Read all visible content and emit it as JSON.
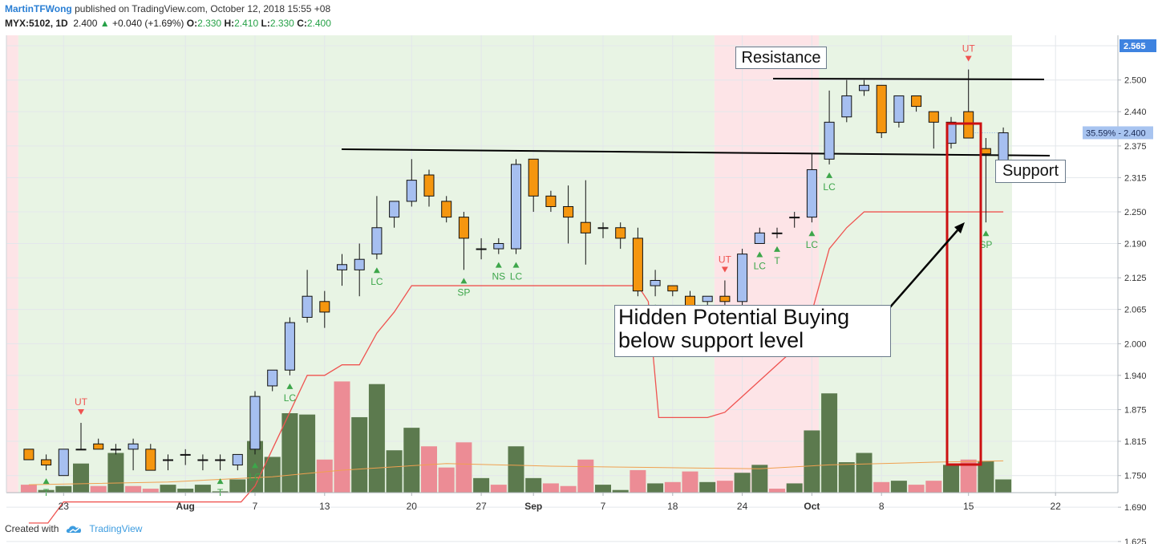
{
  "header": {
    "author": "MartinTFWong",
    "published": "published on TradingView.com, October 12, 2018 15:55 +08",
    "symbol": "MYX:5102, 1D",
    "last": "2.400",
    "change_arrow": "▲",
    "change": "+0.040 (+1.69%)",
    "o_label": "O:",
    "o": "2.330",
    "h_label": "H:",
    "h": "2.410",
    "l_label": "L:",
    "l": "2.330",
    "c_label": "C:",
    "c": "2.400"
  },
  "footer": {
    "created_with": "Created with",
    "brand": "TradingView"
  },
  "annotations": {
    "resistance": "Resistance",
    "support": "Support",
    "hidden_line1": "Hidden Potential Buying",
    "hidden_line2": "below support level"
  },
  "colors": {
    "bull_candle": "#a6bff0",
    "bear_candle": "#f5960f",
    "candle_edge": "#111111",
    "vol_green": "#5c7a4e",
    "vol_red": "#ec8c95",
    "bg_green": "#e8f4e4",
    "bg_pink": "#fde4e7",
    "trail": "#ef5350",
    "arrow_green": "#3da64a",
    "arrow_red": "#ef5350",
    "signal_green": "#3da64a",
    "signal_red": "#ef5350",
    "price_badge": "#3e83e0",
    "box": "#cc1111"
  },
  "chart_data": {
    "type": "candlestick",
    "symbol": "MYX:5102",
    "interval": "1D",
    "ylim": [
      1.6,
      2.58
    ],
    "y_ticks": [
      "2.565",
      "2.500",
      "2.440",
      "2.375",
      "2.315",
      "2.250",
      "2.190",
      "2.125",
      "2.065",
      "2.000",
      "1.940",
      "1.875",
      "1.815",
      "1.750",
      "1.690",
      "1.625"
    ],
    "x_ticks": [
      {
        "label": "23",
        "x": -6
      },
      {
        "label": "Aug",
        "x": 1
      },
      {
        "label": "7",
        "x": 5
      },
      {
        "label": "13",
        "x": 9
      },
      {
        "label": "20",
        "x": 14
      },
      {
        "label": "27",
        "x": 18
      },
      {
        "label": "Sep",
        "x": 21
      },
      {
        "label": "7",
        "x": 25
      },
      {
        "label": "18",
        "x": 29
      },
      {
        "label": "24",
        "x": 33
      },
      {
        "label": "Oct",
        "x": 37
      },
      {
        "label": "8",
        "x": 41
      },
      {
        "label": "15",
        "x": 46
      },
      {
        "label": "22",
        "x": 51
      }
    ],
    "candles": [
      {
        "x": -8,
        "o": 1.8,
        "h": 1.8,
        "l": 1.78,
        "c": 1.78
      },
      {
        "x": -7,
        "o": 1.78,
        "h": 1.79,
        "l": 1.76,
        "c": 1.77
      },
      {
        "x": -6,
        "o": 1.75,
        "h": 1.8,
        "l": 1.75,
        "c": 1.8
      },
      {
        "x": -5,
        "o": 1.8,
        "h": 1.85,
        "l": 1.8,
        "c": 1.8
      },
      {
        "x": -4,
        "o": 1.81,
        "h": 1.82,
        "l": 1.8,
        "c": 1.8
      },
      {
        "x": -3,
        "o": 1.8,
        "h": 1.81,
        "l": 1.79,
        "c": 1.8
      },
      {
        "x": -2,
        "o": 1.8,
        "h": 1.82,
        "l": 1.76,
        "c": 1.81
      },
      {
        "x": -1,
        "o": 1.8,
        "h": 1.81,
        "l": 1.76,
        "c": 1.76
      },
      {
        "x": 0,
        "o": 1.78,
        "h": 1.79,
        "l": 1.76,
        "c": 1.78
      },
      {
        "x": 1,
        "o": 1.79,
        "h": 1.8,
        "l": 1.77,
        "c": 1.79
      },
      {
        "x": 2,
        "o": 1.78,
        "h": 1.79,
        "l": 1.76,
        "c": 1.78
      },
      {
        "x": 3,
        "o": 1.78,
        "h": 1.79,
        "l": 1.76,
        "c": 1.78
      },
      {
        "x": 4,
        "o": 1.77,
        "h": 1.79,
        "l": 1.76,
        "c": 1.79
      },
      {
        "x": 5,
        "o": 1.8,
        "h": 1.91,
        "l": 1.79,
        "c": 1.9
      },
      {
        "x": 6,
        "o": 1.92,
        "h": 1.95,
        "l": 1.91,
        "c": 1.95
      },
      {
        "x": 7,
        "o": 1.95,
        "h": 2.05,
        "l": 1.94,
        "c": 2.04
      },
      {
        "x": 8,
        "o": 2.05,
        "h": 2.14,
        "l": 2.04,
        "c": 2.09
      },
      {
        "x": 9,
        "o": 2.08,
        "h": 2.1,
        "l": 2.03,
        "c": 2.06
      },
      {
        "x": 10,
        "o": 2.14,
        "h": 2.17,
        "l": 2.11,
        "c": 2.15
      },
      {
        "x": 11,
        "o": 2.14,
        "h": 2.19,
        "l": 2.09,
        "c": 2.16
      },
      {
        "x": 12,
        "o": 2.17,
        "h": 2.28,
        "l": 2.16,
        "c": 2.22
      },
      {
        "x": 13,
        "o": 2.24,
        "h": 2.27,
        "l": 2.22,
        "c": 2.27
      },
      {
        "x": 14,
        "o": 2.27,
        "h": 2.35,
        "l": 2.26,
        "c": 2.31
      },
      {
        "x": 15,
        "o": 2.32,
        "h": 2.33,
        "l": 2.26,
        "c": 2.28
      },
      {
        "x": 16,
        "o": 2.27,
        "h": 2.28,
        "l": 2.23,
        "c": 2.24
      },
      {
        "x": 17,
        "o": 2.24,
        "h": 2.25,
        "l": 2.14,
        "c": 2.2
      },
      {
        "x": 18,
        "o": 2.18,
        "h": 2.2,
        "l": 2.16,
        "c": 2.18
      },
      {
        "x": 19,
        "o": 2.18,
        "h": 2.2,
        "l": 2.17,
        "c": 2.19
      },
      {
        "x": 20,
        "o": 2.18,
        "h": 2.35,
        "l": 2.17,
        "c": 2.34
      },
      {
        "x": 21,
        "o": 2.35,
        "h": 2.35,
        "l": 2.25,
        "c": 2.28
      },
      {
        "x": 22,
        "o": 2.28,
        "h": 2.29,
        "l": 2.25,
        "c": 2.26
      },
      {
        "x": 23,
        "o": 2.26,
        "h": 2.3,
        "l": 2.19,
        "c": 2.24
      },
      {
        "x": 24,
        "o": 2.23,
        "h": 2.31,
        "l": 2.15,
        "c": 2.21
      },
      {
        "x": 25,
        "o": 2.22,
        "h": 2.23,
        "l": 2.2,
        "c": 2.22
      },
      {
        "x": 26,
        "o": 2.22,
        "h": 2.23,
        "l": 2.18,
        "c": 2.2
      },
      {
        "x": 27,
        "o": 2.2,
        "h": 2.22,
        "l": 2.09,
        "c": 2.1
      },
      {
        "x": 28,
        "o": 2.11,
        "h": 2.14,
        "l": 2.09,
        "c": 2.12
      },
      {
        "x": 29,
        "o": 2.11,
        "h": 2.11,
        "l": 2.09,
        "c": 2.1
      },
      {
        "x": 30,
        "o": 2.09,
        "h": 2.1,
        "l": 2.03,
        "c": 2.05
      },
      {
        "x": 31,
        "o": 2.08,
        "h": 2.09,
        "l": 2.06,
        "c": 2.09
      },
      {
        "x": 32,
        "o": 2.09,
        "h": 2.12,
        "l": 2.07,
        "c": 2.08
      },
      {
        "x": 33,
        "o": 2.08,
        "h": 2.18,
        "l": 2.07,
        "c": 2.17
      },
      {
        "x": 34,
        "o": 2.19,
        "h": 2.22,
        "l": 2.19,
        "c": 2.21
      },
      {
        "x": 35,
        "o": 2.21,
        "h": 2.22,
        "l": 2.2,
        "c": 2.21
      },
      {
        "x": 36,
        "o": 2.24,
        "h": 2.25,
        "l": 2.22,
        "c": 2.24
      },
      {
        "x": 37,
        "o": 2.24,
        "h": 2.36,
        "l": 2.23,
        "c": 2.33
      },
      {
        "x": 38,
        "o": 2.35,
        "h": 2.48,
        "l": 2.34,
        "c": 2.42
      },
      {
        "x": 39,
        "o": 2.43,
        "h": 2.5,
        "l": 2.42,
        "c": 2.47
      },
      {
        "x": 40,
        "o": 2.48,
        "h": 2.5,
        "l": 2.47,
        "c": 2.49
      },
      {
        "x": 41,
        "o": 2.49,
        "h": 2.49,
        "l": 2.39,
        "c": 2.4
      },
      {
        "x": 42,
        "o": 2.42,
        "h": 2.47,
        "l": 2.41,
        "c": 2.47
      },
      {
        "x": 43,
        "o": 2.47,
        "h": 2.47,
        "l": 2.44,
        "c": 2.45
      },
      {
        "x": 44,
        "o": 2.44,
        "h": 2.44,
        "l": 2.37,
        "c": 2.42
      },
      {
        "x": 45,
        "o": 2.38,
        "h": 2.43,
        "l": 2.37,
        "c": 2.42
      },
      {
        "x": 46,
        "o": 2.44,
        "h": 2.52,
        "l": 2.39,
        "c": 2.39
      },
      {
        "x": 47,
        "o": 2.37,
        "h": 2.39,
        "l": 2.23,
        "c": 2.36
      },
      {
        "x": 48,
        "o": 2.33,
        "h": 2.41,
        "l": 2.33,
        "c": 2.4
      }
    ],
    "volume_pattern": [
      {
        "x": -8,
        "v": 6,
        "up": false
      },
      {
        "x": -7,
        "v": 2,
        "up": true
      },
      {
        "x": -6,
        "v": 5,
        "up": true
      },
      {
        "x": -5,
        "v": 22,
        "up": true
      },
      {
        "x": -4,
        "v": 5,
        "up": false
      },
      {
        "x": -3,
        "v": 30,
        "up": true
      },
      {
        "x": -2,
        "v": 5,
        "up": false
      },
      {
        "x": -1,
        "v": 3,
        "up": false
      },
      {
        "x": 0,
        "v": 6,
        "up": true
      },
      {
        "x": 1,
        "v": 3,
        "up": true
      },
      {
        "x": 2,
        "v": 6,
        "up": true
      },
      {
        "x": 3,
        "v": 1,
        "up": true
      },
      {
        "x": 4,
        "v": 10,
        "up": true
      },
      {
        "x": 5,
        "v": 39,
        "up": true
      },
      {
        "x": 6,
        "v": 27,
        "up": true
      },
      {
        "x": 7,
        "v": 60,
        "up": true
      },
      {
        "x": 8,
        "v": 59,
        "up": true
      },
      {
        "x": 9,
        "v": 25,
        "up": false
      },
      {
        "x": 10,
        "v": 84,
        "up": false
      },
      {
        "x": 11,
        "v": 57,
        "up": true
      },
      {
        "x": 12,
        "v": 82,
        "up": true
      },
      {
        "x": 13,
        "v": 32,
        "up": true
      },
      {
        "x": 14,
        "v": 49,
        "up": true
      },
      {
        "x": 15,
        "v": 35,
        "up": false
      },
      {
        "x": 16,
        "v": 19,
        "up": false
      },
      {
        "x": 17,
        "v": 38,
        "up": false
      },
      {
        "x": 18,
        "v": 11,
        "up": true
      },
      {
        "x": 19,
        "v": 6,
        "up": false
      },
      {
        "x": 20,
        "v": 35,
        "up": true
      },
      {
        "x": 21,
        "v": 11,
        "up": true
      },
      {
        "x": 22,
        "v": 7,
        "up": false
      },
      {
        "x": 23,
        "v": 5,
        "up": false
      },
      {
        "x": 24,
        "v": 25,
        "up": false
      },
      {
        "x": 25,
        "v": 6,
        "up": true
      },
      {
        "x": 26,
        "v": 2,
        "up": true
      },
      {
        "x": 27,
        "v": 17,
        "up": false
      },
      {
        "x": 28,
        "v": 7,
        "up": true
      },
      {
        "x": 29,
        "v": 8,
        "up": false
      },
      {
        "x": 30,
        "v": 16,
        "up": false
      },
      {
        "x": 31,
        "v": 8,
        "up": true
      },
      {
        "x": 32,
        "v": 9,
        "up": false
      },
      {
        "x": 33,
        "v": 15,
        "up": true
      },
      {
        "x": 34,
        "v": 21,
        "up": true
      },
      {
        "x": 35,
        "v": 3,
        "up": false
      },
      {
        "x": 36,
        "v": 7,
        "up": true
      },
      {
        "x": 37,
        "v": 47,
        "up": true
      },
      {
        "x": 38,
        "v": 75,
        "up": true
      },
      {
        "x": 39,
        "v": 23,
        "up": true
      },
      {
        "x": 40,
        "v": 30,
        "up": true
      },
      {
        "x": 41,
        "v": 8,
        "up": false
      },
      {
        "x": 42,
        "v": 9,
        "up": true
      },
      {
        "x": 43,
        "v": 6,
        "up": false
      },
      {
        "x": 44,
        "v": 9,
        "up": false
      },
      {
        "x": 45,
        "v": 21,
        "up": true
      },
      {
        "x": 46,
        "v": 25,
        "up": false
      },
      {
        "x": 47,
        "v": 24,
        "up": true
      },
      {
        "x": 48,
        "v": 10,
        "up": true
      }
    ],
    "volume_ma": [
      {
        "x": -8,
        "v": 6
      },
      {
        "x": 0,
        "v": 8
      },
      {
        "x": 6,
        "v": 12
      },
      {
        "x": 10,
        "v": 17
      },
      {
        "x": 16,
        "v": 22
      },
      {
        "x": 22,
        "v": 20
      },
      {
        "x": 28,
        "v": 19
      },
      {
        "x": 34,
        "v": 18
      },
      {
        "x": 38,
        "v": 21
      },
      {
        "x": 44,
        "v": 23
      },
      {
        "x": 48,
        "v": 24
      }
    ],
    "trail_stop": [
      {
        "x": -8,
        "y": 1.66
      },
      {
        "x": -6.9,
        "y": 1.66
      },
      {
        "x": -6,
        "y": 1.7
      },
      {
        "x": 4.2,
        "y": 1.7
      },
      {
        "x": 5,
        "y": 1.73
      },
      {
        "x": 6,
        "y": 1.8
      },
      {
        "x": 7,
        "y": 1.87
      },
      {
        "x": 8,
        "y": 1.94
      },
      {
        "x": 9,
        "y": 1.94
      },
      {
        "x": 10,
        "y": 1.96
      },
      {
        "x": 11,
        "y": 1.96
      },
      {
        "x": 12,
        "y": 2.02
      },
      {
        "x": 13,
        "y": 2.06
      },
      {
        "x": 14,
        "y": 2.11
      },
      {
        "x": 15,
        "y": 2.11
      },
      {
        "x": 27,
        "y": 2.11
      },
      {
        "x": 27.6,
        "y": 2.08
      },
      {
        "x": 28.2,
        "y": 1.86
      },
      {
        "x": 31,
        "y": 1.86
      },
      {
        "x": 32,
        "y": 1.87
      },
      {
        "x": 33,
        "y": 1.9
      },
      {
        "x": 34,
        "y": 1.93
      },
      {
        "x": 35,
        "y": 1.96
      },
      {
        "x": 36,
        "y": 1.99
      },
      {
        "x": 37,
        "y": 2.06
      },
      {
        "x": 38,
        "y": 2.18
      },
      {
        "x": 39,
        "y": 2.22
      },
      {
        "x": 40,
        "y": 2.25
      },
      {
        "x": 48,
        "y": 2.25
      }
    ],
    "shading": [
      {
        "from": -9.5,
        "to": -8.6,
        "color": "pink"
      },
      {
        "from": -8.6,
        "to": 31.4,
        "color": "green"
      },
      {
        "from": 31.4,
        "to": 37.4,
        "color": "pink"
      },
      {
        "from": 37.4,
        "to": 48.5,
        "color": "green"
      }
    ],
    "signals": [
      {
        "x": -7,
        "label": "T",
        "dir": "up"
      },
      {
        "x": -5,
        "label": "UT",
        "dir": "down"
      },
      {
        "x": 3,
        "label": "T",
        "dir": "up"
      },
      {
        "x": 5,
        "label": "LC",
        "dir": "up"
      },
      {
        "x": 7,
        "label": "LC",
        "dir": "up"
      },
      {
        "x": 12,
        "label": "LC",
        "dir": "up"
      },
      {
        "x": 17,
        "label": "SP",
        "dir": "up"
      },
      {
        "x": 19,
        "label": "NS",
        "dir": "up"
      },
      {
        "x": 20,
        "label": "LC",
        "dir": "up"
      },
      {
        "x": 28,
        "label": "SP",
        "dir": "up"
      },
      {
        "x": 32,
        "label": "UT",
        "dir": "down"
      },
      {
        "x": 33,
        "label": "LC",
        "dir": "up"
      },
      {
        "x": 34,
        "label": "LC",
        "dir": "up"
      },
      {
        "x": 35,
        "label": "T",
        "dir": "up"
      },
      {
        "x": 37,
        "label": "LC",
        "dir": "up"
      },
      {
        "x": 38,
        "label": "LC",
        "dir": "up"
      },
      {
        "x": 46,
        "label": "UT",
        "dir": "down"
      },
      {
        "x": 47,
        "label": "SP",
        "dir": "up"
      }
    ],
    "current_price_label": "2.400",
    "percent_label": "35.59%",
    "top_price_label": "2.565"
  }
}
